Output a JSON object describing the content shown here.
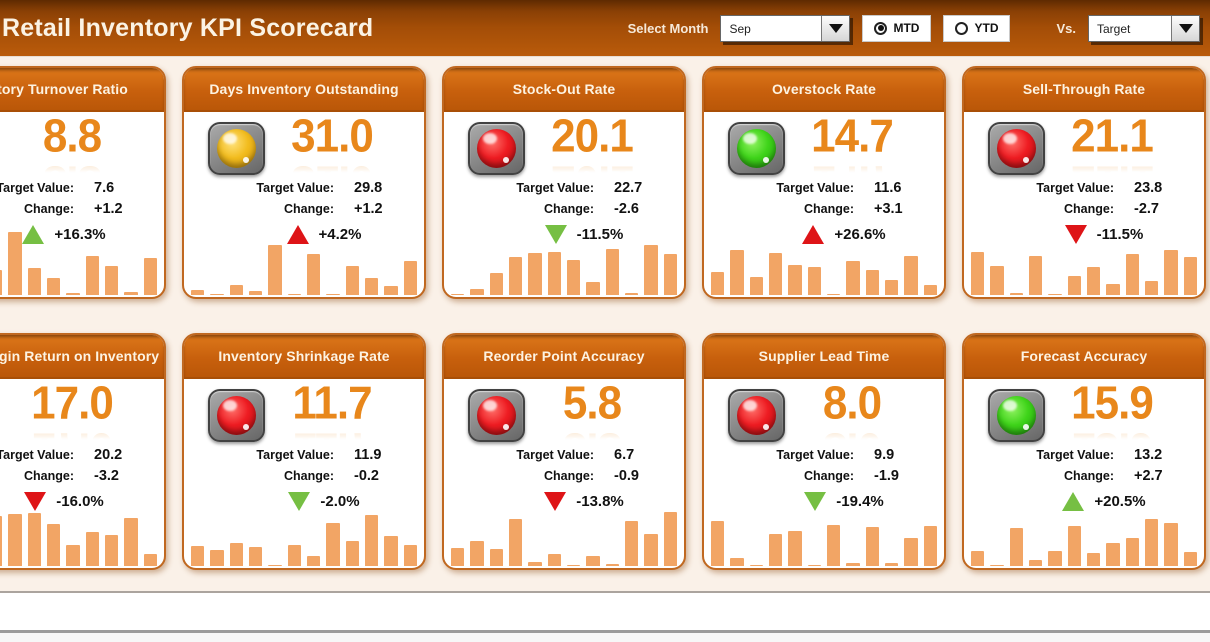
{
  "header": {
    "title": "Retail Inventory KPI Scorecard",
    "select_month_label": "Select Month",
    "month_value": "Sep",
    "mtd_label": "MTD",
    "ytd_label": "YTD",
    "selected_period": "MTD",
    "vs_label": "Vs.",
    "vs_value": "Target"
  },
  "labels": {
    "target": "Target Value:",
    "change": "Change:"
  },
  "colors": {
    "topbar_orange": "#A34D07",
    "card_header_orange": "#C8600D",
    "kpi_value_orange": "#E8871B",
    "bar_orange": "#F2A565",
    "up_good_green": "#76BF43",
    "down_bad_red": "#DE1417",
    "light_red": "#EE1C22",
    "light_green": "#3FD41A",
    "light_yellow": "#F2BC1E"
  },
  "cards": [
    {
      "title": "Inventory Turnover Ratio",
      "value": "8.8",
      "light": null,
      "target": "7.6",
      "change": "+1.2",
      "pct": "+16.3%",
      "pct_dir": "up",
      "pct_color": "green",
      "bars": [
        2.5,
        3.5,
        1.5,
        2.6,
        6.5,
        2.8,
        1.8,
        0.2,
        4.0,
        3.0,
        0.3,
        3.8
      ]
    },
    {
      "title": "Days Inventory Outstanding",
      "value": "31.0",
      "light": "yellow",
      "target": "29.8",
      "change": "+1.2",
      "pct": "+4.2%",
      "pct_dir": "up",
      "pct_color": "red",
      "bars": [
        0.5,
        0.15,
        1.0,
        0.4,
        5.2,
        0.1,
        4.2,
        0.15,
        3.0,
        1.8,
        0.9,
        3.5
      ]
    },
    {
      "title": "Stock-Out Rate",
      "value": "20.1",
      "light": "red",
      "target": "22.7",
      "change": "-2.6",
      "pct": "-11.5%",
      "pct_dir": "down",
      "pct_color": "green",
      "bars": [
        0.1,
        0.6,
        2.3,
        3.9,
        4.3,
        4.4,
        3.6,
        1.3,
        4.8,
        0.2,
        5.2,
        4.2
      ]
    },
    {
      "title": "Overstock Rate",
      "value": "14.7",
      "light": "green",
      "target": "11.6",
      "change": "+3.1",
      "pct": "+26.6%",
      "pct_dir": "up",
      "pct_color": "red",
      "bars": [
        2.4,
        4.6,
        1.9,
        4.3,
        3.1,
        2.9,
        0.1,
        3.5,
        2.6,
        1.5,
        4.0,
        1.0
      ]
    },
    {
      "title": "Sell-Through Rate",
      "value": "21.1",
      "light": "red",
      "target": "23.8",
      "change": "-2.7",
      "pct": "-11.5%",
      "pct_dir": "down",
      "pct_color": "red",
      "bars": [
        4.4,
        3.0,
        0.2,
        4.0,
        0.15,
        2.0,
        2.9,
        1.1,
        4.2,
        1.4,
        4.6,
        3.9
      ]
    },
    {
      "title": "Gross Margin Return on Inventory",
      "value": "17.0",
      "light": null,
      "target": "20.2",
      "change": "-3.2",
      "pct": "-16.0%",
      "pct_dir": "down",
      "pct_color": "red",
      "bars": [
        3.0,
        4.0,
        5.0,
        5.2,
        5.4,
        5.5,
        4.3,
        2.2,
        3.5,
        3.2,
        5.0,
        1.2
      ]
    },
    {
      "title": "Inventory Shrinkage Rate",
      "value": "11.7",
      "light": "red",
      "target": "11.9",
      "change": "-0.2",
      "pct": "-2.0%",
      "pct_dir": "down",
      "pct_color": "green",
      "bars": [
        2.1,
        1.7,
        2.4,
        2.0,
        0.1,
        2.2,
        1.0,
        4.4,
        2.6,
        5.3,
        3.1,
        2.2
      ]
    },
    {
      "title": "Reorder Point Accuracy",
      "value": "5.8",
      "light": "red",
      "target": "6.7",
      "change": "-0.9",
      "pct": "-13.8%",
      "pct_dir": "down",
      "pct_color": "red",
      "bars": [
        1.9,
        2.6,
        1.8,
        4.9,
        0.4,
        1.2,
        0.05,
        1.0,
        0.2,
        4.6,
        3.3,
        5.6
      ]
    },
    {
      "title": "Supplier Lead Time",
      "value": "8.0",
      "light": "red",
      "target": "9.9",
      "change": "-1.9",
      "pct": "-19.4%",
      "pct_dir": "down",
      "pct_color": "green",
      "bars": [
        4.6,
        0.8,
        0.1,
        3.3,
        3.6,
        0.15,
        4.2,
        0.3,
        4.0,
        0.3,
        2.9,
        4.1
      ]
    },
    {
      "title": "Forecast Accuracy",
      "value": "15.9",
      "light": "green",
      "target": "13.2",
      "change": "+2.7",
      "pct": "+20.5%",
      "pct_dir": "up",
      "pct_color": "green",
      "bars": [
        1.5,
        0.1,
        3.9,
        0.6,
        1.6,
        4.1,
        1.3,
        2.4,
        2.9,
        4.9,
        4.4,
        1.4
      ]
    }
  ]
}
